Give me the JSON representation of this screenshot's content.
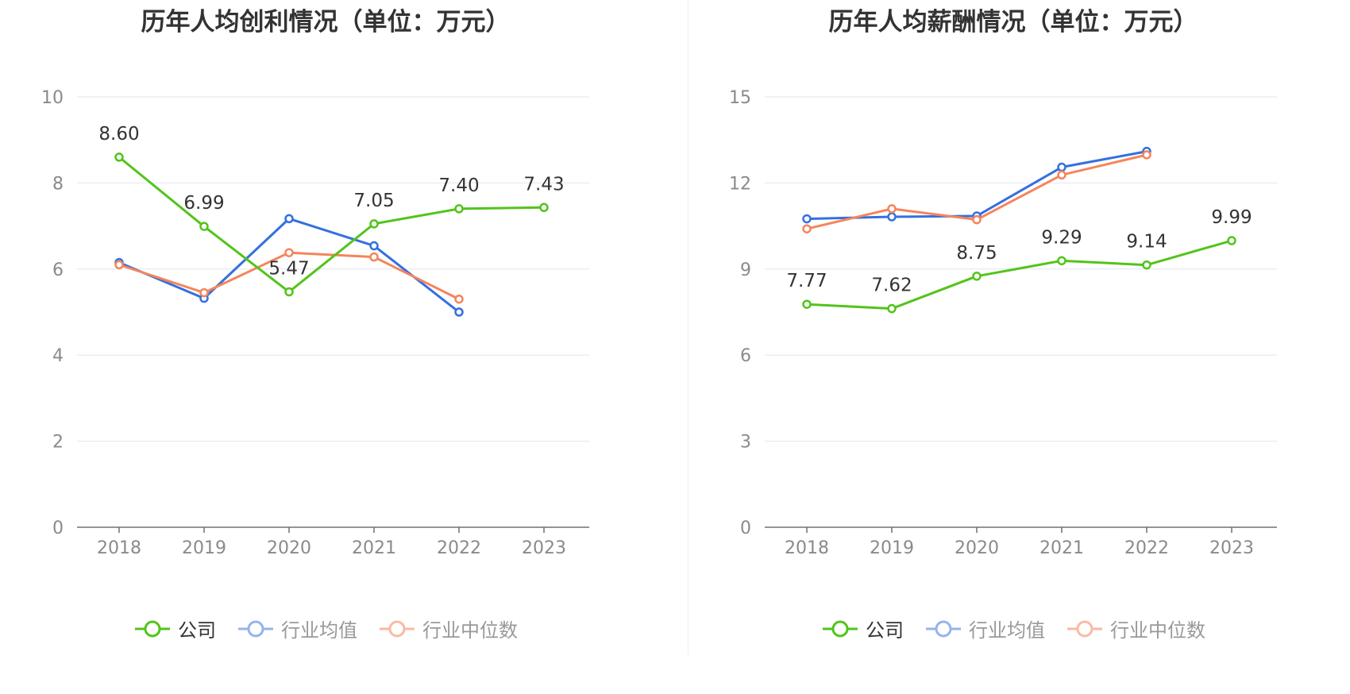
{
  "legend": [
    "公司",
    "行业均值",
    "行业中位数"
  ],
  "colors": {
    "company": "#52c41a",
    "avg": "#3370e0",
    "median": "#f5855a",
    "avg_legend": "#94b3ee",
    "median_legend": "#f9baa2",
    "grid": "#e0e6f1",
    "axis": "#6e7079"
  },
  "chart_data": [
    {
      "type": "line",
      "title": "历年人均创利情况（单位：万元）",
      "categories": [
        "2018",
        "2019",
        "2020",
        "2021",
        "2022",
        "2023"
      ],
      "ylim": [
        0,
        10
      ],
      "yticks": [
        0,
        2,
        4,
        6,
        8,
        10
      ],
      "series": [
        {
          "name": "公司",
          "key": "company",
          "values": [
            8.6,
            6.99,
            5.47,
            7.05,
            7.4,
            7.43
          ],
          "labels": [
            "8.60",
            "6.99",
            "5.47",
            "7.05",
            "7.40",
            "7.43"
          ]
        },
        {
          "name": "行业均值",
          "key": "avg",
          "values": [
            6.15,
            5.32,
            7.17,
            6.54,
            5.0,
            null
          ]
        },
        {
          "name": "行业中位数",
          "key": "median",
          "values": [
            6.1,
            5.45,
            6.38,
            6.28,
            5.3,
            null
          ]
        }
      ]
    },
    {
      "type": "line",
      "title": "历年人均薪酬情况（单位：万元）",
      "categories": [
        "2018",
        "2019",
        "2020",
        "2021",
        "2022",
        "2023"
      ],
      "ylim": [
        0,
        15
      ],
      "yticks": [
        0,
        3,
        6,
        9,
        12,
        15
      ],
      "series": [
        {
          "name": "公司",
          "key": "company",
          "values": [
            7.77,
            7.62,
            8.75,
            9.29,
            9.14,
            9.99
          ],
          "labels": [
            "7.77",
            "7.62",
            "8.75",
            "9.29",
            "9.14",
            "9.99"
          ]
        },
        {
          "name": "行业均值",
          "key": "avg",
          "values": [
            10.75,
            10.82,
            10.85,
            12.55,
            13.1,
            null
          ]
        },
        {
          "name": "行业中位数",
          "key": "median",
          "values": [
            10.4,
            11.1,
            10.72,
            12.28,
            12.98,
            null
          ]
        }
      ]
    }
  ]
}
